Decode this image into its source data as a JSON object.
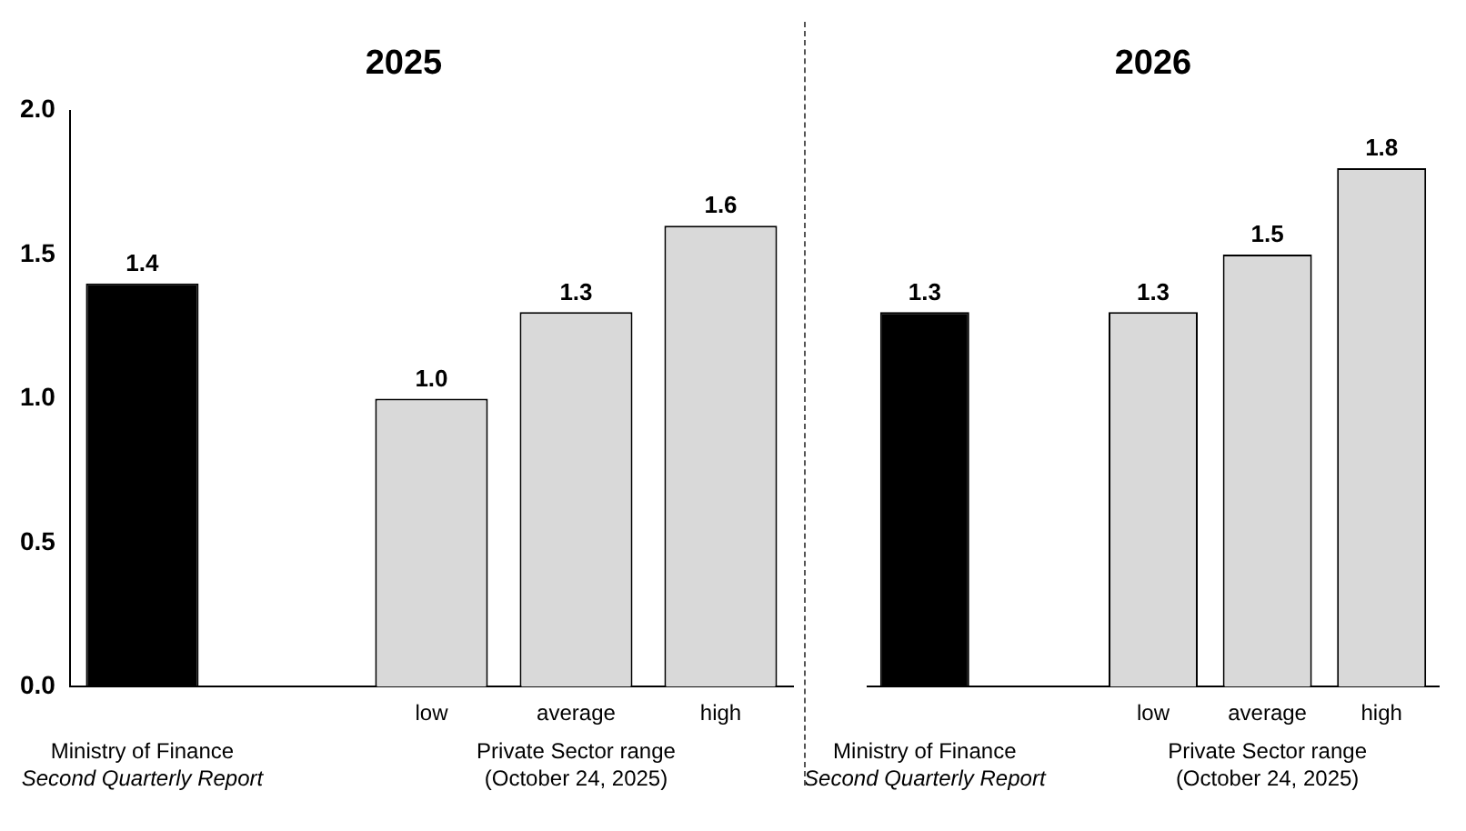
{
  "chart_data": [
    {
      "type": "bar",
      "title": "2025",
      "categories": [
        null,
        null,
        "low",
        "average",
        "high"
      ],
      "values": [
        1.4,
        null,
        1.0,
        1.3,
        1.6
      ],
      "value_labels": [
        "1.4",
        null,
        "1.0",
        "1.3",
        "1.6"
      ],
      "colors": [
        "#000000",
        "#d9d9d9",
        "#d9d9d9",
        "#d9d9d9",
        "#d9d9d9"
      ],
      "ylim": [
        0,
        2
      ],
      "yticks": [
        {
          "value": 0,
          "label": "0.0"
        },
        {
          "value": 0.5,
          "label": "0.5"
        },
        {
          "value": 1,
          "label": "1.0"
        },
        {
          "value": 1.5,
          "label": "1.5"
        },
        {
          "value": 2,
          "label": "2.0"
        }
      ],
      "grid": false,
      "legend": false,
      "annotations": [
        "Ministry of Finance",
        "Second Quarterly Report",
        "Private Sector range",
        "(October 24, 2025)"
      ]
    },
    {
      "type": "bar",
      "title": "2026",
      "categories": [
        null,
        null,
        "low",
        "average",
        "high"
      ],
      "values": [
        1.3,
        null,
        1.3,
        1.5,
        1.8
      ],
      "value_labels": [
        "1.3",
        null,
        "1.3",
        "1.5",
        "1.8"
      ],
      "colors": [
        "#000000",
        "#d9d9d9",
        "#d9d9d9",
        "#d9d9d9",
        "#d9d9d9"
      ],
      "ylim": [
        0,
        2
      ],
      "tick_labels": "x",
      "grid": false,
      "legend": false,
      "annotations": [
        "Ministry of Finance",
        "Second Quarterly Report",
        "Private Sector range",
        "(October 24, 2025)"
      ]
    }
  ]
}
